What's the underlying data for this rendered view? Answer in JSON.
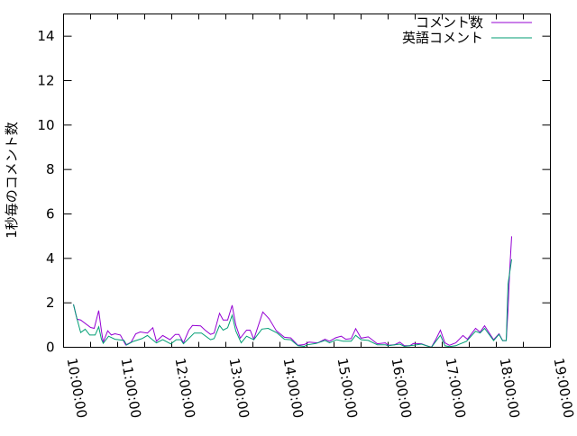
{
  "chart_data": {
    "type": "line",
    "title": "",
    "xlabel": "",
    "ylabel": "1秒毎のコメント数",
    "xlim": [
      "10:00:00",
      "19:00:00"
    ],
    "ylim": [
      0,
      15
    ],
    "xticks": [
      "10:00:00",
      "11:00:00",
      "12:00:00",
      "13:00:00",
      "14:00:00",
      "15:00:00",
      "16:00:00",
      "17:00:00",
      "18:00:00",
      "19:00:00"
    ],
    "yticks": [
      0,
      2,
      4,
      6,
      8,
      10,
      12,
      14
    ],
    "grid": false,
    "legend_position": "top-right",
    "series": [
      {
        "name": "コメント数",
        "color": "#9400d3",
        "points": [
          [
            "10:11",
            1.93
          ],
          [
            "10:15",
            1.26
          ],
          [
            "10:19",
            1.23
          ],
          [
            "10:30",
            0.89
          ],
          [
            "10:34",
            0.85
          ],
          [
            "10:39",
            1.65
          ],
          [
            "10:42",
            0.74
          ],
          [
            "10:44",
            0.23
          ],
          [
            "10:49",
            0.74
          ],
          [
            "10:53",
            0.55
          ],
          [
            "10:57",
            0.61
          ],
          [
            "11:03",
            0.55
          ],
          [
            "11:09",
            0.1
          ],
          [
            "11:15",
            0.23
          ],
          [
            "11:20",
            0.6
          ],
          [
            "11:25",
            0.69
          ],
          [
            "11:33",
            0.64
          ],
          [
            "11:39",
            0.88
          ],
          [
            "11:43",
            0.27
          ],
          [
            "11:50",
            0.53
          ],
          [
            "11:58",
            0.34
          ],
          [
            "12:04",
            0.58
          ],
          [
            "12:08",
            0.58
          ],
          [
            "12:13",
            0.2
          ],
          [
            "12:19",
            0.77
          ],
          [
            "12:23",
            0.98
          ],
          [
            "12:32",
            0.96
          ],
          [
            "12:37",
            0.77
          ],
          [
            "12:43",
            0.58
          ],
          [
            "12:47",
            0.64
          ],
          [
            "12:53",
            1.53
          ],
          [
            "12:57",
            1.23
          ],
          [
            "13:02",
            1.23
          ],
          [
            "13:07",
            1.89
          ],
          [
            "13:11",
            1.01
          ],
          [
            "13:16",
            0.41
          ],
          [
            "13:23",
            0.77
          ],
          [
            "13:27",
            0.77
          ],
          [
            "13:31",
            0.36
          ],
          [
            "13:41",
            1.59
          ],
          [
            "13:48",
            1.28
          ],
          [
            "13:56",
            0.74
          ],
          [
            "14:05",
            0.45
          ],
          [
            "14:12",
            0.42
          ],
          [
            "14:20",
            0.09
          ],
          [
            "14:27",
            0.12
          ],
          [
            "14:32",
            0.23
          ],
          [
            "14:42",
            0.2
          ],
          [
            "14:50",
            0.36
          ],
          [
            "14:55",
            0.27
          ],
          [
            "15:02",
            0.43
          ],
          [
            "15:08",
            0.5
          ],
          [
            "15:13",
            0.36
          ],
          [
            "15:19",
            0.39
          ],
          [
            "15:24",
            0.84
          ],
          [
            "15:30",
            0.41
          ],
          [
            "15:38",
            0.47
          ],
          [
            "15:48",
            0.16
          ],
          [
            "15:57",
            0.2
          ],
          [
            "16:00",
            0.09
          ],
          [
            "16:07",
            0.11
          ],
          [
            "16:13",
            0.23
          ],
          [
            "16:18",
            0.07
          ],
          [
            "16:24",
            0.07
          ],
          [
            "16:28",
            0.17
          ],
          [
            "16:37",
            0.16
          ],
          [
            "16:43",
            0.07
          ],
          [
            "16:48",
            0.0
          ],
          [
            "16:53",
            0.36
          ],
          [
            "16:58",
            0.77
          ],
          [
            "17:03",
            0.2
          ],
          [
            "17:08",
            0.09
          ],
          [
            "17:15",
            0.2
          ],
          [
            "17:23",
            0.53
          ],
          [
            "17:28",
            0.36
          ],
          [
            "17:37",
            0.85
          ],
          [
            "17:42",
            0.68
          ],
          [
            "17:47",
            0.97
          ],
          [
            "17:57",
            0.34
          ],
          [
            "18:03",
            0.61
          ],
          [
            "18:07",
            0.3
          ],
          [
            "18:11",
            0.3
          ],
          [
            "18:13",
            1.69
          ],
          [
            "18:15",
            3.58
          ],
          [
            "18:17",
            4.99
          ]
        ]
      },
      {
        "name": "英語コメント",
        "color": "#009e73",
        "points": [
          [
            "10:11",
            1.93
          ],
          [
            "10:14",
            1.42
          ],
          [
            "10:19",
            0.66
          ],
          [
            "10:24",
            0.81
          ],
          [
            "10:29",
            0.55
          ],
          [
            "10:35",
            0.55
          ],
          [
            "10:39",
            0.92
          ],
          [
            "10:42",
            0.36
          ],
          [
            "10:44",
            0.18
          ],
          [
            "10:50",
            0.5
          ],
          [
            "10:57",
            0.36
          ],
          [
            "11:07",
            0.31
          ],
          [
            "11:10",
            0.1
          ],
          [
            "11:17",
            0.26
          ],
          [
            "11:27",
            0.39
          ],
          [
            "11:33",
            0.53
          ],
          [
            "11:38",
            0.36
          ],
          [
            "11:43",
            0.2
          ],
          [
            "11:50",
            0.34
          ],
          [
            "11:59",
            0.15
          ],
          [
            "12:05",
            0.34
          ],
          [
            "12:10",
            0.34
          ],
          [
            "12:13",
            0.16
          ],
          [
            "12:19",
            0.4
          ],
          [
            "12:25",
            0.64
          ],
          [
            "12:33",
            0.64
          ],
          [
            "12:43",
            0.34
          ],
          [
            "12:47",
            0.39
          ],
          [
            "12:53",
            0.98
          ],
          [
            "12:57",
            0.77
          ],
          [
            "13:02",
            0.88
          ],
          [
            "13:07",
            1.44
          ],
          [
            "13:11",
            0.74
          ],
          [
            "13:17",
            0.2
          ],
          [
            "13:23",
            0.5
          ],
          [
            "13:31",
            0.34
          ],
          [
            "13:40",
            0.82
          ],
          [
            "13:47",
            0.85
          ],
          [
            "13:57",
            0.64
          ],
          [
            "14:05",
            0.36
          ],
          [
            "14:12",
            0.34
          ],
          [
            "14:20",
            0.07
          ],
          [
            "14:27",
            0.04
          ],
          [
            "14:30",
            0.11
          ],
          [
            "14:40",
            0.17
          ],
          [
            "14:50",
            0.31
          ],
          [
            "14:55",
            0.2
          ],
          [
            "15:03",
            0.34
          ],
          [
            "15:10",
            0.27
          ],
          [
            "15:19",
            0.27
          ],
          [
            "15:24",
            0.54
          ],
          [
            "15:30",
            0.34
          ],
          [
            "15:38",
            0.31
          ],
          [
            "15:48",
            0.11
          ],
          [
            "15:57",
            0.11
          ],
          [
            "16:00",
            0.07
          ],
          [
            "16:13",
            0.14
          ],
          [
            "16:18",
            0.04
          ],
          [
            "16:28",
            0.09
          ],
          [
            "16:37",
            0.14
          ],
          [
            "16:48",
            0.0
          ],
          [
            "16:53",
            0.27
          ],
          [
            "16:58",
            0.54
          ],
          [
            "17:03",
            0.07
          ],
          [
            "17:08",
            0.03
          ],
          [
            "17:15",
            0.07
          ],
          [
            "17:27",
            0.27
          ],
          [
            "17:37",
            0.72
          ],
          [
            "17:42",
            0.64
          ],
          [
            "17:47",
            0.85
          ],
          [
            "17:57",
            0.3
          ],
          [
            "18:03",
            0.58
          ],
          [
            "18:07",
            0.3
          ],
          [
            "18:11",
            0.3
          ],
          [
            "18:13",
            2.84
          ],
          [
            "18:17",
            3.96
          ]
        ]
      }
    ]
  }
}
